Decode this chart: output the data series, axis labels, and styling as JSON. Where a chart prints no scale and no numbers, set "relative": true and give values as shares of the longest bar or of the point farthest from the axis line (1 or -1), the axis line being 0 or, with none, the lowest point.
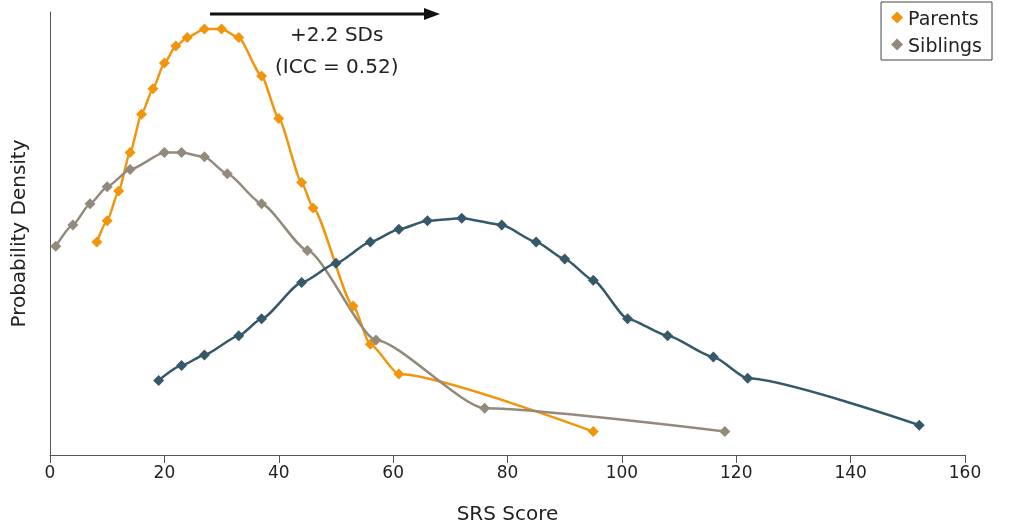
{
  "chart_data": {
    "type": "line",
    "relative": true,
    "xlabel": "SRS Score",
    "ylabel": "Probability Density",
    "xlim": [
      0,
      160
    ],
    "xticks": [
      0,
      20,
      40,
      60,
      80,
      100,
      120,
      140,
      160
    ],
    "marker": "diamond",
    "legend": "top right",
    "grid": false,
    "annotations": [
      "+2.2 SDs",
      "(ICC = 0.52)"
    ],
    "series": [
      {
        "name": "Parents",
        "color": "#f0960e",
        "x": [
          8.2,
          10,
          12,
          14,
          16,
          18,
          20,
          22,
          24,
          27,
          30,
          33,
          37,
          40,
          44,
          46,
          53,
          56,
          61,
          95
        ],
        "values": [
          0.5,
          0.55,
          0.62,
          0.71,
          0.8,
          0.86,
          0.92,
          0.96,
          0.98,
          1,
          1,
          0.98,
          0.89,
          0.79,
          0.64,
          0.58,
          0.35,
          0.26,
          0.19,
          0.055
        ]
      },
      {
        "name": "Siblings",
        "color": "#948a7b",
        "x": [
          1,
          4,
          7,
          10,
          14,
          20,
          23,
          27,
          31,
          37,
          45,
          57,
          76,
          118
        ],
        "values": [
          0.49,
          0.54,
          0.59,
          0.63,
          0.67,
          0.71,
          0.71,
          0.7,
          0.66,
          0.59,
          0.48,
          0.27,
          0.11,
          0.055
        ]
      },
      {
        "color": "#355968",
        "x": [
          19,
          23,
          27,
          33,
          37,
          44,
          50,
          56,
          61,
          66,
          72,
          79,
          85,
          90,
          95,
          101,
          108,
          116,
          122,
          152
        ],
        "values": [
          0.175,
          0.21,
          0.235,
          0.28,
          0.32,
          0.405,
          0.45,
          0.5,
          0.53,
          0.55,
          0.556,
          0.54,
          0.5,
          0.46,
          0.41,
          0.32,
          0.28,
          0.23,
          0.18,
          0.07
        ]
      }
    ]
  }
}
